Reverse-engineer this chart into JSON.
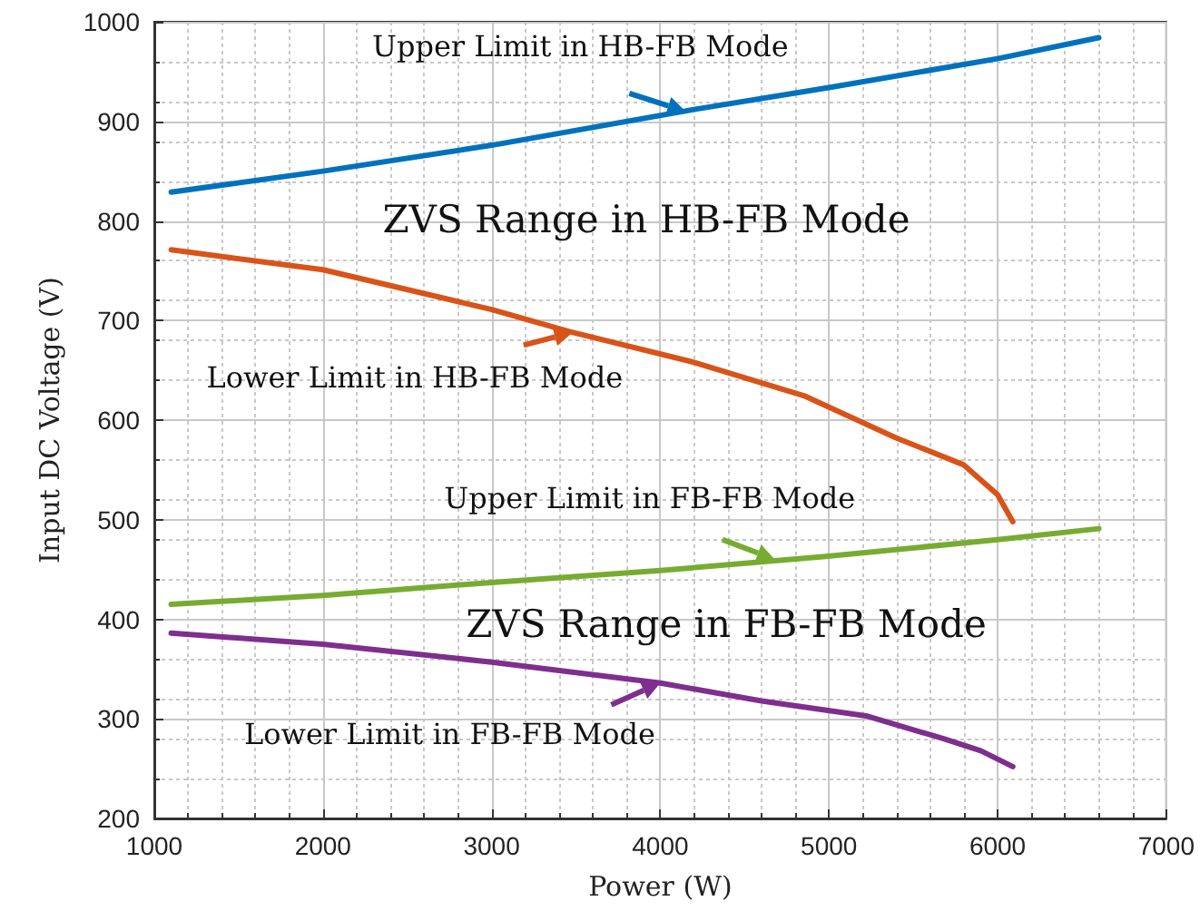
{
  "chart_data": {
    "type": "line",
    "xlabel": "Power (W)",
    "ylabel": "Input DC Voltage (V)",
    "xlim": [
      1000,
      7000
    ],
    "xticks": [
      1000,
      2000,
      3000,
      4000,
      5000,
      6000,
      7000
    ],
    "ylim": [
      200,
      1000
    ],
    "yticks": [
      200,
      300,
      400,
      500,
      600,
      700,
      800,
      900,
      1000
    ],
    "grid": true,
    "marker": "none",
    "line_style": "solid",
    "series": [
      {
        "color": "#0072bd",
        "x": [
          1100,
          2000,
          3000,
          4200,
          5000,
          6000,
          6600
        ],
        "values": [
          829,
          850,
          876,
          912,
          934,
          963,
          984
        ]
      },
      {
        "color": "#d95319",
        "x": [
          1100,
          2000,
          3000,
          3460,
          4200,
          4860,
          5400,
          5800,
          6000,
          6090
        ],
        "values": [
          771,
          751,
          711,
          689,
          658,
          624,
          582,
          555,
          525,
          498
        ]
      },
      {
        "color": "#77ac30",
        "x": [
          1100,
          2000,
          3000,
          4000,
          4980,
          6000,
          6600
        ],
        "values": [
          415,
          424,
          437,
          449,
          463,
          480,
          491
        ]
      },
      {
        "color": "#7e2f8e",
        "x": [
          1100,
          2000,
          3000,
          4000,
          4600,
          5220,
          5680,
          5900,
          6090
        ],
        "values": [
          386,
          375,
          357,
          336,
          318,
          303,
          280,
          268,
          252
        ]
      }
    ],
    "annotations": [
      {
        "text": "Upper Limit in HB-FB Mode",
        "x": 4150,
        "y": 910
      },
      "ZVS Range in HB-FB Mode",
      {
        "text": "Lower Limit in HB-FB Mode",
        "x": 3480,
        "y": 688
      },
      {
        "text": "Upper Limit in FB-FB Mode",
        "x": 4680,
        "y": 460
      },
      "ZVS Range in FB-FB Mode",
      {
        "text": "Lower Limit in FB-FB Mode",
        "x": 4000,
        "y": 336
      }
    ]
  }
}
